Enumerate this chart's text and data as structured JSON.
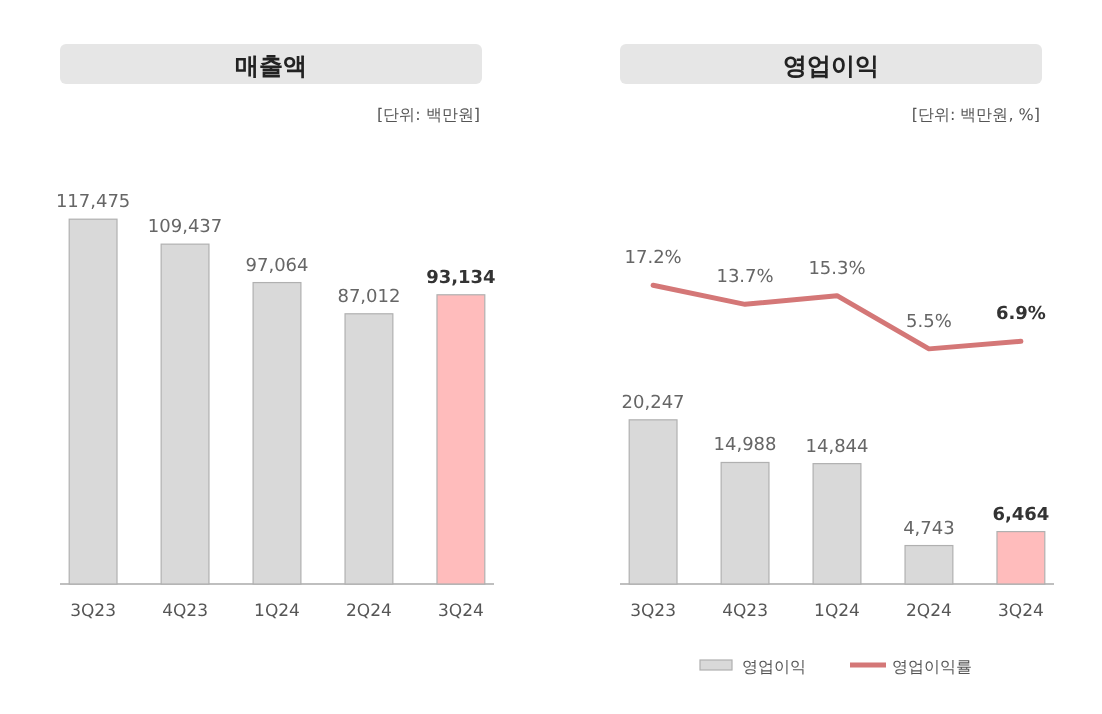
{
  "chart_data": [
    {
      "type": "bar",
      "title": "매출액",
      "subtitle": "[단위: 백만원]",
      "categories": [
        "3Q23",
        "4Q23",
        "1Q24",
        "2Q24",
        "3Q24"
      ],
      "series": [
        {
          "type": "bar",
          "values": [
            117475,
            109437,
            97064,
            87012,
            93134
          ],
          "colors": [
            "#d9d9d9",
            "#d9d9d9",
            "#d9d9d9",
            "#d9d9d9",
            "#ffbcbc"
          ],
          "value_labels": [
            "117,475",
            "109,437",
            "97,064",
            "87,012",
            "93,134"
          ]
        }
      ],
      "legend": false
    },
    {
      "type": "bar",
      "categories": [
        "3Q23",
        "4Q23",
        "1Q24",
        "2Q24",
        "3Q24"
      ],
      "series": [
        {
          "type": "bar",
          "name": "영업이익",
          "color": "#d9d9d9",
          "values": [
            20247,
            14988,
            14844,
            4743,
            6464
          ],
          "colors": [
            "#d9d9d9",
            "#d9d9d9",
            "#d9d9d9",
            "#d9d9d9",
            "#ffbcbc"
          ],
          "value_labels": [
            "20,247",
            "14,988",
            "14,844",
            "4,743",
            "6,464"
          ]
        }
      ],
      "legend": "bottom"
    },
    {
      "type": "line",
      "title": "영업이익",
      "subtitle": "[단위: 백만원, %]",
      "categories": [
        null,
        null,
        null,
        null,
        null
      ],
      "series": [
        {
          "type": "line",
          "name": "영업이익률",
          "color": "#d47777",
          "values": [
            17.2,
            13.7,
            15.3,
            5.5,
            6.9
          ],
          "value_labels": [
            "17.2%",
            "13.7%",
            "15.3%",
            "5.5%",
            "6.9%"
          ]
        }
      ],
      "legend": "bottom"
    }
  ]
}
